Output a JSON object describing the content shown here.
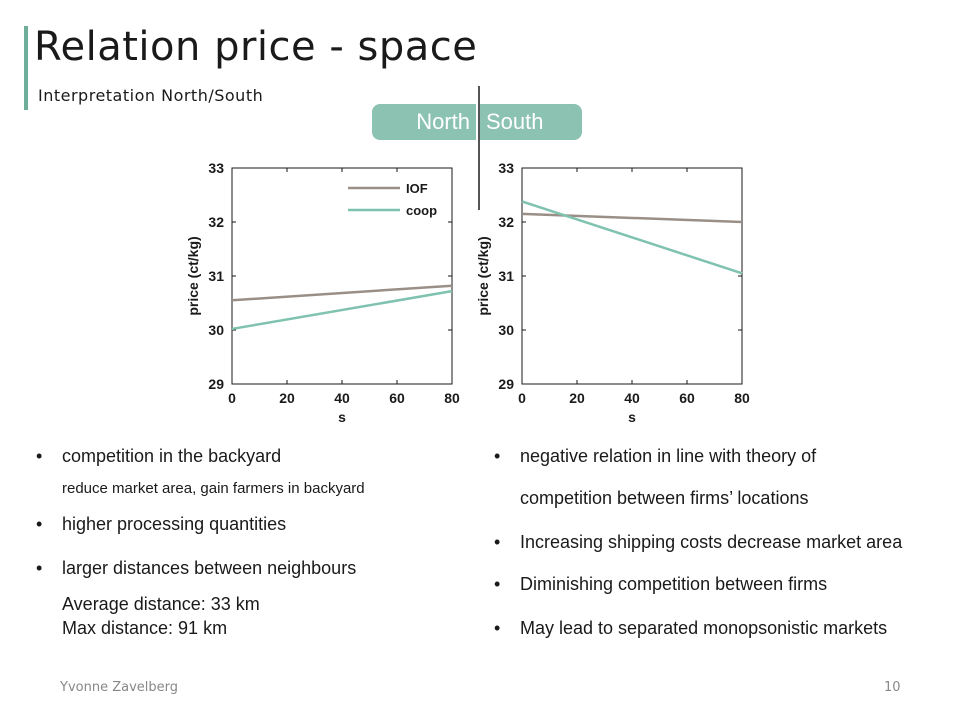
{
  "header": {
    "title": "Relation price - space",
    "subtitle": "Interpretation  North/South",
    "tab_north": "North",
    "tab_south": "South"
  },
  "colors": {
    "accent": "#8cc2b2",
    "iof_line": "#9a8f86",
    "coop_line": "#7fc2af"
  },
  "chart_data": [
    {
      "type": "line",
      "region": "North",
      "xlabel": "s",
      "ylabel": "price (ct/kg)",
      "xlim": [
        0,
        80
      ],
      "ylim": [
        29,
        33
      ],
      "xticks": [
        "0",
        "20",
        "40",
        "60",
        "80"
      ],
      "yticks": [
        "29",
        "30",
        "31",
        "32",
        "33"
      ],
      "legend": "top-right",
      "series": [
        {
          "name": "IOF",
          "x": [
            0,
            80
          ],
          "y": [
            30.55,
            30.82
          ]
        },
        {
          "name": "coop",
          "x": [
            0,
            80
          ],
          "y": [
            30.02,
            30.72
          ]
        }
      ]
    },
    {
      "type": "line",
      "region": "South",
      "xlabel": "s",
      "ylabel": "price (ct/kg)",
      "xlim": [
        0,
        80
      ],
      "ylim": [
        29,
        33
      ],
      "xticks": [
        "0",
        "20",
        "40",
        "60",
        "80"
      ],
      "yticks": [
        "29",
        "30",
        "31",
        "32",
        "33"
      ],
      "series": [
        {
          "name": "IOF",
          "x": [
            0,
            80
          ],
          "y": [
            32.15,
            32.0
          ]
        },
        {
          "name": "coop",
          "x": [
            0,
            80
          ],
          "y": [
            32.38,
            31.05
          ]
        }
      ]
    }
  ],
  "left_text": {
    "b1": "competition in the backyard",
    "b1_sub": "reduce market area, gain farmers in backyard",
    "b2": "higher processing quantities",
    "b3": "larger distances between neighbours",
    "avg": "Average distance: 33 km",
    "max": "Max distance: 91 km"
  },
  "right_text": {
    "b1_line1": "negative relation in line with theory of",
    "b1_line2": "competition between firms’ locations",
    "b2": "Increasing shipping costs decrease market area",
    "b3": "Diminishing competition between firms",
    "b4": "May lead to separated monopsonistic markets"
  },
  "bullet_char": "•",
  "footer": {
    "author": "Yvonne Zavelberg",
    "page": "10"
  }
}
